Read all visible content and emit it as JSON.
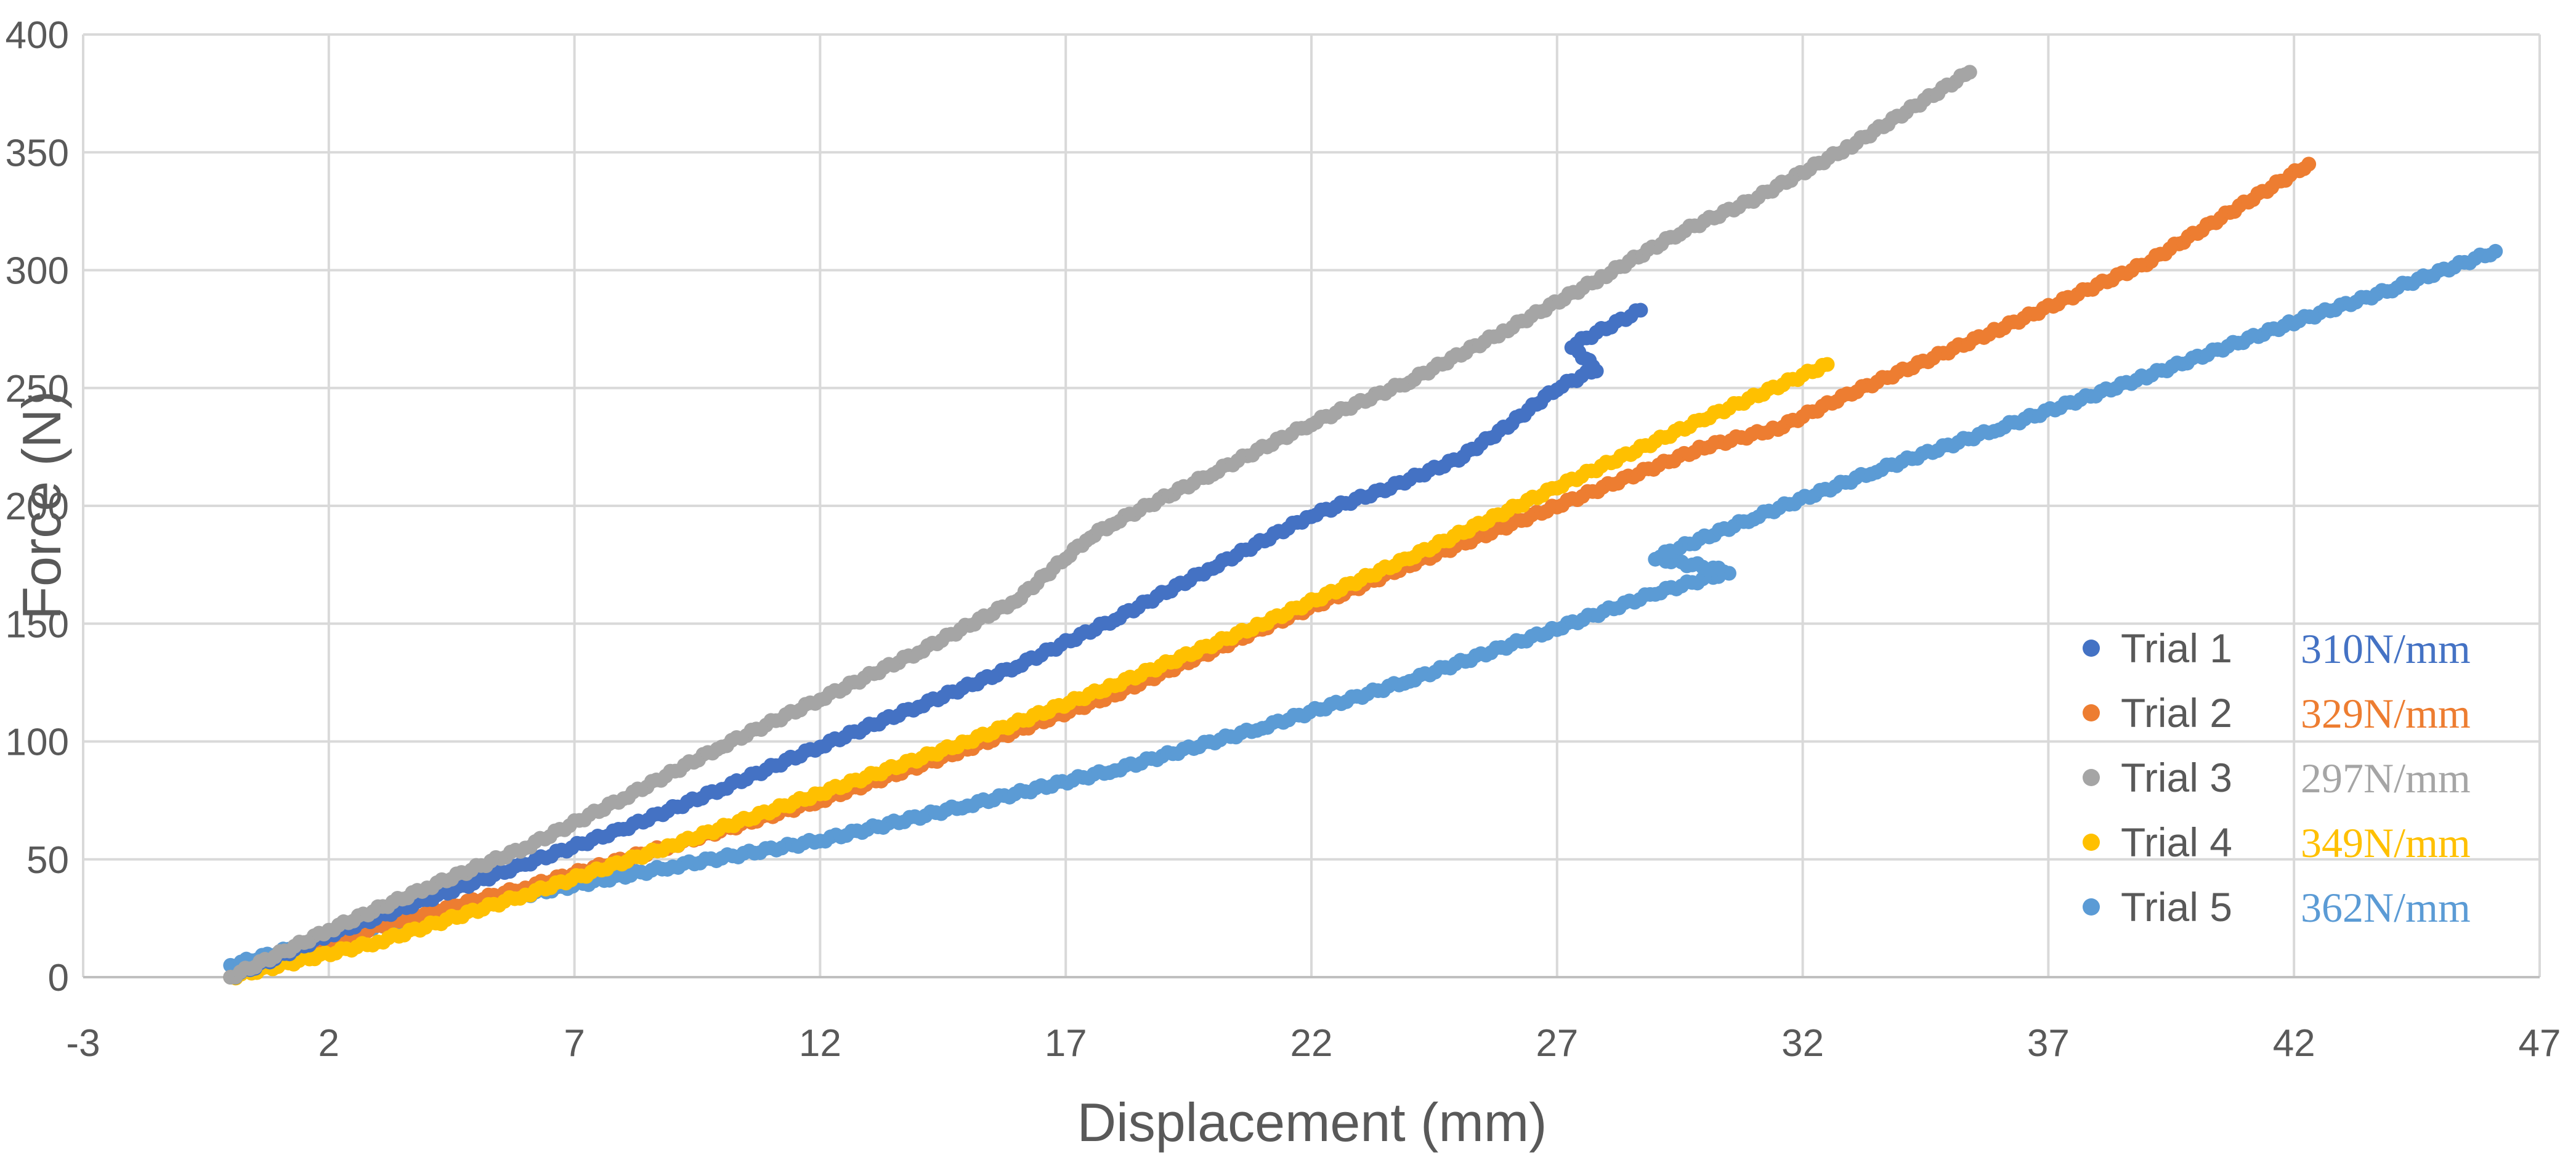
{
  "chart_data": {
    "type": "scatter",
    "title": "",
    "xlabel": "Displacement (mm)",
    "ylabel": "Force (N)",
    "xlim": [
      -3,
      47
    ],
    "ylim": [
      0,
      400
    ],
    "x_ticks": [
      "-3",
      "2",
      "7",
      "12",
      "17",
      "22",
      "27",
      "32",
      "37",
      "42",
      "47"
    ],
    "y_ticks": [
      "0",
      "50",
      "100",
      "150",
      "200",
      "250",
      "300",
      "350",
      "400"
    ],
    "grid": true,
    "legend_position": "bottom-right",
    "series": [
      {
        "name": "Trial 1",
        "color": "#4472c4",
        "stiffness_label": "310N/mm",
        "points": [
          [
            0,
            0
          ],
          [
            2,
            18
          ],
          [
            4,
            33
          ],
          [
            6,
            48
          ],
          [
            8,
            63
          ],
          [
            10,
            80
          ],
          [
            12,
            98
          ],
          [
            14,
            115
          ],
          [
            16,
            132
          ],
          [
            18,
            152
          ],
          [
            20,
            174
          ],
          [
            22,
            196
          ],
          [
            23.5,
            207
          ],
          [
            25,
            220
          ],
          [
            26,
            234
          ],
          [
            27,
            250
          ],
          [
            27.8,
            258
          ],
          [
            27.3,
            268
          ],
          [
            28.7,
            283
          ]
        ]
      },
      {
        "name": "Trial 2",
        "color": "#ed7d31",
        "stiffness_label": "329N/mm",
        "points": [
          [
            0,
            0
          ],
          [
            3,
            22
          ],
          [
            6,
            38
          ],
          [
            9,
            56
          ],
          [
            12,
            75
          ],
          [
            15,
            97
          ],
          [
            18,
            120
          ],
          [
            21,
            148
          ],
          [
            24,
            175
          ],
          [
            27,
            200
          ],
          [
            30,
            225
          ],
          [
            31.5,
            233
          ],
          [
            33,
            248
          ],
          [
            36,
            275
          ],
          [
            39,
            303
          ],
          [
            42.3,
            345
          ]
        ]
      },
      {
        "name": "Trial 3",
        "color": "#a5a5a5",
        "stiffness_label": "297N/mm",
        "points": [
          [
            0,
            0
          ],
          [
            2,
            20
          ],
          [
            4,
            38
          ],
          [
            6,
            55
          ],
          [
            8,
            76
          ],
          [
            10,
            98
          ],
          [
            12,
            118
          ],
          [
            14,
            138
          ],
          [
            16,
            160
          ],
          [
            17,
            178
          ],
          [
            17.5,
            187
          ],
          [
            18,
            193
          ],
          [
            20,
            214
          ],
          [
            22,
            235
          ],
          [
            24,
            253
          ],
          [
            26,
            275
          ],
          [
            28,
            298
          ],
          [
            29.5,
            316
          ],
          [
            31,
            330
          ],
          [
            33,
            353
          ],
          [
            35.4,
            384
          ]
        ]
      },
      {
        "name": "Trial 4",
        "color": "#ffc000",
        "stiffness_label": "349N/mm",
        "points": [
          [
            0,
            0
          ],
          [
            3,
            15
          ],
          [
            6,
            35
          ],
          [
            9,
            56
          ],
          [
            12,
            78
          ],
          [
            15,
            100
          ],
          [
            18,
            124
          ],
          [
            21,
            150
          ],
          [
            24,
            178
          ],
          [
            27,
            208
          ],
          [
            30,
            237
          ],
          [
            32.5,
            260
          ]
        ]
      },
      {
        "name": "Trial 5",
        "color": "#5b9bd5",
        "stiffness_label": "362N/mm",
        "points": [
          [
            0,
            5
          ],
          [
            3,
            22
          ],
          [
            6,
            35
          ],
          [
            9,
            47
          ],
          [
            12,
            58
          ],
          [
            15,
            73
          ],
          [
            18,
            88
          ],
          [
            21,
            106
          ],
          [
            24,
            126
          ],
          [
            27,
            148
          ],
          [
            29,
            163
          ],
          [
            30.5,
            172
          ],
          [
            29,
            178
          ],
          [
            31,
            195
          ],
          [
            33.5,
            215
          ],
          [
            36,
            233
          ],
          [
            39,
            255
          ],
          [
            42,
            278
          ],
          [
            44,
            292
          ],
          [
            46.1,
            308
          ]
        ]
      }
    ]
  }
}
